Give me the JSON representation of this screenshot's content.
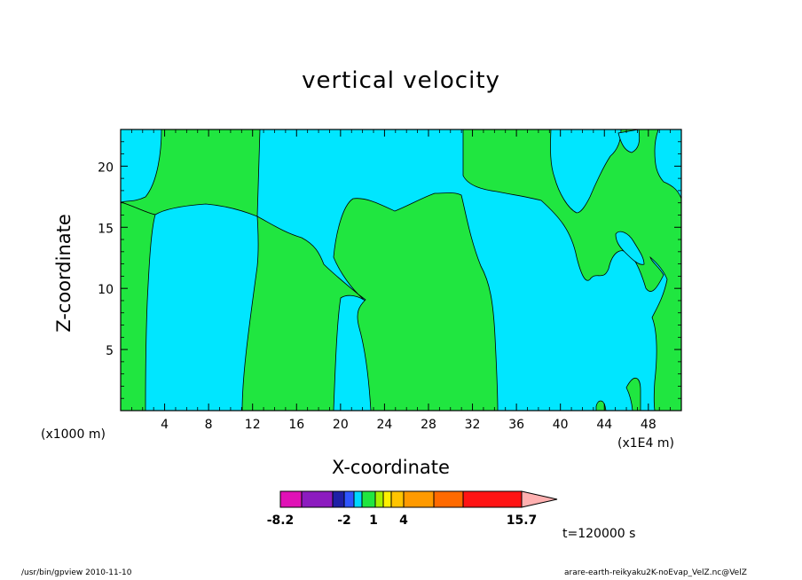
{
  "chart_data": {
    "type": "heatmap",
    "title": "vertical velocity",
    "xlabel": "X-coordinate",
    "ylabel": "Z-coordinate",
    "x_unit_label": "(x1000 m)",
    "x_scale_label": "(x1E4 m)",
    "xlim": [
      0,
      51
    ],
    "ylim": [
      0,
      23
    ],
    "x_ticks": [
      "4",
      "8",
      "12",
      "16",
      "20",
      "24",
      "28",
      "32",
      "36",
      "40",
      "44",
      "48"
    ],
    "y_ticks": [
      "5",
      "10",
      "15",
      "20"
    ],
    "colorbar": {
      "colors": [
        "#e011b6",
        "#8c1bbf",
        "#1f1fa6",
        "#2f56ff",
        "#00d8ff",
        "#20e640",
        "#a8f000",
        "#fff000",
        "#ffc400",
        "#ff9a00",
        "#ff6a00",
        "#ff1414",
        "#ff8080",
        "#ffb0b0"
      ],
      "labels": [
        "-8.2",
        "-2",
        "1",
        "4",
        "15.7"
      ]
    },
    "time_label": "t=120000  s"
  },
  "footer": {
    "left": "/usr/bin/gpview   2010-11-10",
    "right": "arare-earth-reikyaku2K-noEvap_VelZ.nc@VelZ"
  }
}
